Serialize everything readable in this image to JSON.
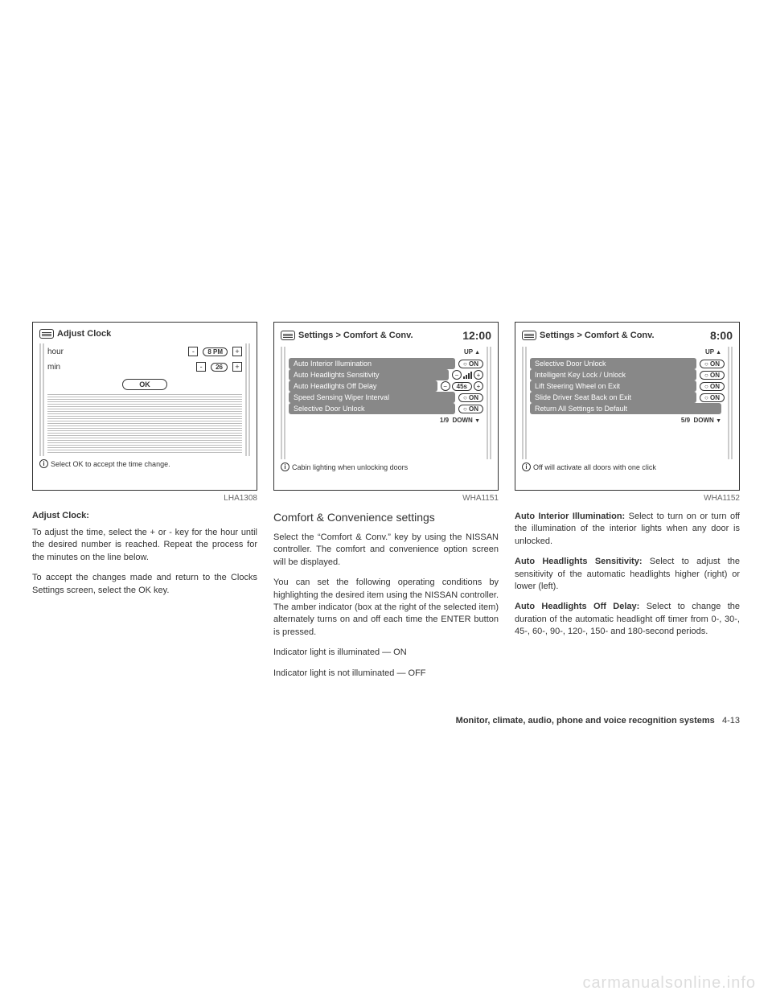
{
  "figures": {
    "fig1": {
      "caption": "LHA1308",
      "title": "Adjust Clock",
      "rows": [
        {
          "label": "hour",
          "value": "8 PM"
        },
        {
          "label": "min",
          "value": "26"
        }
      ],
      "ok": "OK",
      "footer": "Select OK to accept the time change."
    },
    "fig2": {
      "caption": "WHA1151",
      "title": "Settings > Comfort & Conv.",
      "clock": "12:00",
      "up": "UP",
      "down": "DOWN",
      "page": "1/9",
      "rows": [
        {
          "label": "Auto Interior Illumination",
          "ctrl": "on",
          "value": "ON"
        },
        {
          "label": "Auto Headlights Sensitivity",
          "ctrl": "bars"
        },
        {
          "label": "Auto Headlights Off Delay",
          "ctrl": "stepper",
          "value": "45s"
        },
        {
          "label": "Speed Sensing Wiper Interval",
          "ctrl": "on",
          "value": "ON"
        },
        {
          "label": "Selective Door Unlock",
          "ctrl": "on",
          "value": "ON"
        }
      ],
      "footer": "Cabin lighting when unlocking doors"
    },
    "fig3": {
      "caption": "WHA1152",
      "title": "Settings > Comfort & Conv.",
      "clock": "8:00",
      "up": "UP",
      "down": "DOWN",
      "page": "5/9",
      "rows": [
        {
          "label": "Selective Door Unlock",
          "ctrl": "on",
          "value": "ON"
        },
        {
          "label": "Intelligent Key Lock / Unlock",
          "ctrl": "on",
          "value": "ON"
        },
        {
          "label": "Lift Steering Wheel on Exit",
          "ctrl": "on",
          "value": "ON"
        },
        {
          "label": "Slide Driver Seat Back on Exit",
          "ctrl": "on",
          "value": "ON"
        },
        {
          "label": "Return All Settings to Default",
          "ctrl": "none"
        }
      ],
      "footer": "Off will activate all doors with one click"
    }
  },
  "text": {
    "col1": {
      "h": "Adjust Clock:",
      "p1": "To adjust the time, select the + or - key for the hour until the desired number is reached. Repeat the process for the minutes on the line below.",
      "p2": "To accept the changes made and return to the Clocks Settings screen, select the OK key."
    },
    "col2": {
      "h": "Comfort & Convenience settings",
      "p1": "Select the “Comfort & Conv.” key by using the NISSAN controller. The comfort and convenience option screen will be displayed.",
      "p2": "You can set the following operating conditions by highlighting the desired item using the NISSAN controller. The amber indicator (box at the right of the selected item) alternately turns on and off each time the ENTER button is pressed.",
      "p3": "Indicator light is illuminated — ON",
      "p4": "Indicator light is not illuminated — OFF"
    },
    "col3": {
      "p1b": "Auto Interior Illumination:",
      "p1": " Select to turn on or turn off the illumination of the interior lights when any door is unlocked.",
      "p2b": "Auto Headlights Sensitivity:",
      "p2": " Select to adjust the sensitivity of the automatic headlights higher (right) or lower (left).",
      "p3b": "Auto Headlights Off Delay:",
      "p3": " Select to change the duration of the automatic headlight off timer from 0-, 30-, 45-, 60-, 90-, 120-, 150- and 180-second periods."
    }
  },
  "footer": {
    "chapter": "Monitor, climate, audio, phone and voice recognition systems",
    "page": "4-13"
  },
  "watermark": "carmanualsonline.info"
}
